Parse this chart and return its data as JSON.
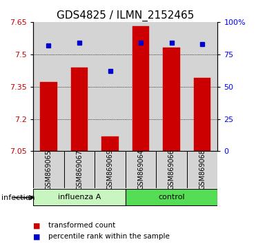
{
  "title": "GDS4825 / ILMN_2152465",
  "samples": [
    "GSM869065",
    "GSM869067",
    "GSM869069",
    "GSM869064",
    "GSM869066",
    "GSM869068"
  ],
  "bar_values": [
    7.37,
    7.44,
    7.12,
    7.63,
    7.53,
    7.39
  ],
  "dot_values": [
    82,
    84,
    62,
    84,
    84,
    83
  ],
  "bar_color": "#cc0000",
  "dot_color": "#0000cc",
  "ylim_left": [
    7.05,
    7.65
  ],
  "ylim_right": [
    0,
    100
  ],
  "yticks_left": [
    7.05,
    7.2,
    7.35,
    7.5,
    7.65
  ],
  "yticks_right": [
    0,
    25,
    50,
    75,
    100
  ],
  "ytick_labels_right": [
    "0",
    "25",
    "50",
    "75",
    "100%"
  ],
  "groups": [
    {
      "label": "influenza A",
      "indices": [
        0,
        1,
        2
      ]
    },
    {
      "label": "control",
      "indices": [
        3,
        4,
        5
      ]
    }
  ],
  "group_label": "infection",
  "legend_items": [
    {
      "color": "#cc0000",
      "label": "transformed count"
    },
    {
      "color": "#0000cc",
      "label": "percentile rank within the sample"
    }
  ],
  "bar_width": 0.55,
  "col_bg": "#d4d4d4",
  "bar_bottom": 7.05,
  "title_fontsize": 11,
  "tick_fontsize": 8,
  "sample_fontsize": 7,
  "influenza_color": "#c8f5c0",
  "control_color": "#55dd55",
  "group_label_color": "#55dd55"
}
